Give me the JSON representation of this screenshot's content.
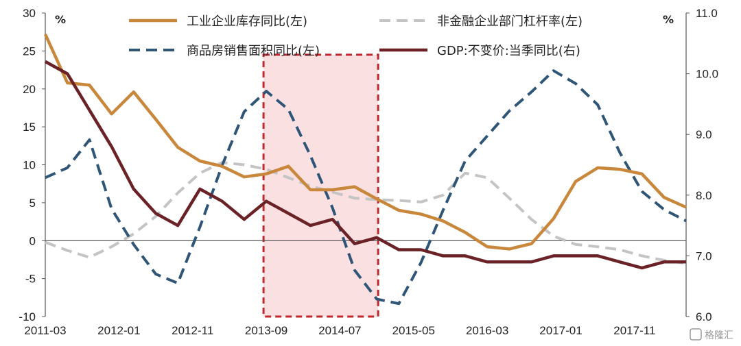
{
  "chart_data": {
    "type": "line",
    "x": [
      "2011-03",
      "2011-06",
      "2011-09",
      "2011-12",
      "2012-03",
      "2012-06",
      "2012-09",
      "2012-12",
      "2013-03",
      "2013-06",
      "2013-09",
      "2013-12",
      "2014-03",
      "2014-06",
      "2014-09",
      "2014-12",
      "2015-03",
      "2015-06",
      "2015-09",
      "2015-12",
      "2016-03",
      "2016-06",
      "2016-09",
      "2016-12",
      "2017-03",
      "2017-06",
      "2017-09",
      "2017-12",
      "2018-03",
      "2018-06"
    ],
    "xtick_labels": [
      "2011-03",
      "2012-01",
      "2012-11",
      "2013-09",
      "2014-07",
      "2015-05",
      "2016-03",
      "2017-01",
      "2017-11"
    ],
    "left_axis": {
      "unit": "%",
      "ylim": [
        -10,
        30
      ],
      "ticks": [
        "30",
        "25",
        "20",
        "15",
        "10",
        "5",
        "0",
        "-5",
        "-10"
      ]
    },
    "right_axis": {
      "unit": "%",
      "ylim": [
        6.0,
        11.0
      ],
      "ticks": [
        "11.0",
        "10.0",
        "9.0",
        "8.0",
        "7.0",
        "6.0"
      ]
    },
    "series": [
      {
        "name": "工业企业库存同比(左)",
        "axis": "left",
        "color": "#C8873A",
        "style": "solid",
        "values": [
          27.2,
          20.8,
          20.5,
          16.7,
          19.6,
          16.0,
          12.3,
          10.5,
          9.8,
          8.4,
          8.8,
          9.8,
          6.7,
          6.7,
          7.1,
          5.5,
          4.0,
          3.5,
          2.6,
          1.1,
          -0.8,
          -1.1,
          -0.4,
          2.9,
          7.8,
          9.6,
          9.4,
          8.8,
          5.7,
          4.4
        ]
      },
      {
        "name": "非金融企业部门杠杆率(左)",
        "axis": "left",
        "color": "#C4C4C4",
        "style": "dash",
        "values": [
          -0.2,
          -1.3,
          -2.2,
          -0.8,
          0.9,
          3.2,
          6.3,
          8.9,
          10.3,
          10.0,
          9.4,
          8.3,
          7.2,
          6.4,
          5.6,
          5.4,
          5.3,
          5.1,
          6.0,
          8.9,
          8.3,
          5.6,
          2.8,
          0.6,
          -0.5,
          -0.8,
          -1.2,
          -2.0,
          -2.6,
          -3.0
        ]
      },
      {
        "name": "商品房销售面积同比(左)",
        "axis": "left",
        "color": "#2F5577",
        "style": "dash",
        "values": [
          8.3,
          9.6,
          13.3,
          4.2,
          -0.5,
          -4.4,
          -5.6,
          1.8,
          9.9,
          17.0,
          19.7,
          17.3,
          11.2,
          4.3,
          -3.9,
          -7.7,
          -8.3,
          -2.9,
          4.0,
          10.5,
          13.8,
          17.1,
          19.6,
          22.4,
          20.7,
          17.9,
          11.6,
          6.5,
          4.1,
          2.6
        ]
      },
      {
        "name": "GDP:不变价:当季同比(右)",
        "axis": "right",
        "color": "#6B2226",
        "style": "solid",
        "values": [
          10.2,
          10.0,
          9.4,
          8.8,
          8.1,
          7.7,
          7.5,
          8.1,
          7.9,
          7.6,
          7.9,
          7.7,
          7.5,
          7.6,
          7.2,
          7.3,
          7.1,
          7.1,
          7.0,
          7.0,
          6.9,
          6.9,
          6.9,
          7.0,
          7.0,
          7.0,
          6.9,
          6.8,
          6.9,
          6.9
        ]
      }
    ],
    "highlight_range": [
      "2013-09",
      "2014-12"
    ],
    "grid": false,
    "legend": "top"
  },
  "watermark": "格隆汇"
}
